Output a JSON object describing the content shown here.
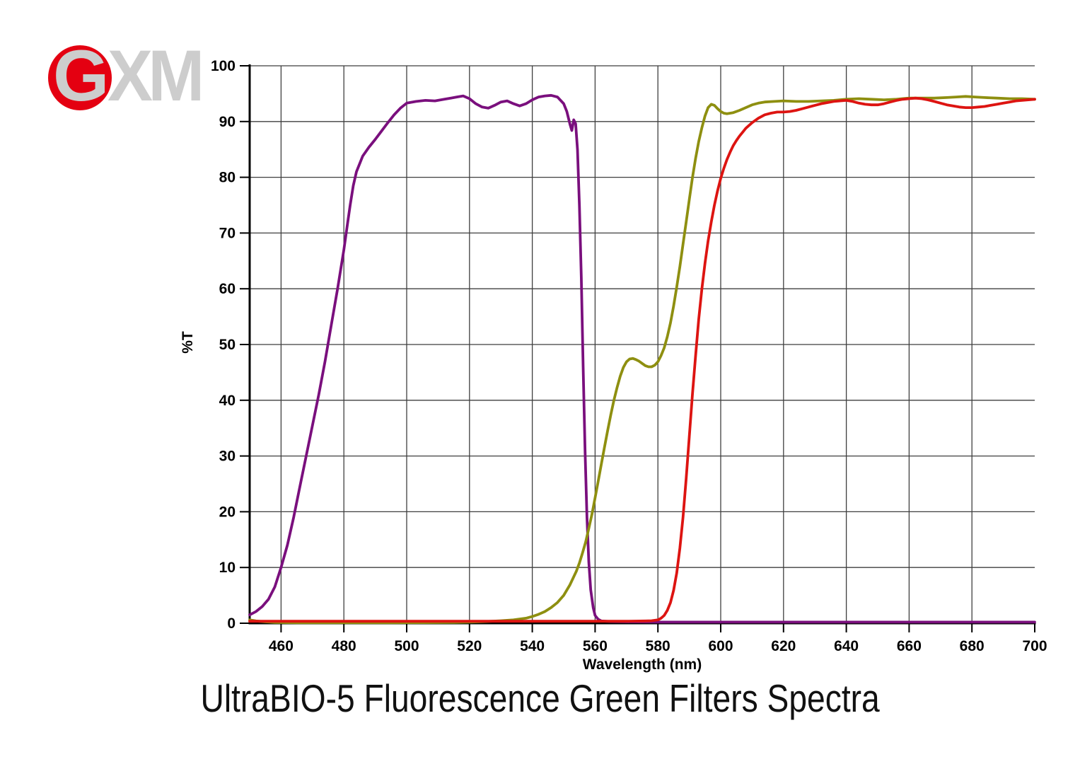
{
  "logo": {
    "g": "G",
    "xm": "XM",
    "circle_color": "#e40011",
    "letter_color": "#cdcdcd"
  },
  "title": "UltraBIO-5 Fluorescence Green Filters Spectra",
  "chart_data": {
    "type": "line",
    "title": "UltraBIO-5 Fluorescence Green Filters Spectra",
    "xlabel": "Wavelength (nm)",
    "ylabel": "%T",
    "xlim": [
      450,
      700
    ],
    "ylim": [
      0,
      100
    ],
    "x_ticks": [
      460,
      480,
      500,
      520,
      540,
      560,
      580,
      600,
      620,
      640,
      660,
      680,
      700
    ],
    "y_ticks": [
      0,
      10,
      20,
      30,
      40,
      50,
      60,
      70,
      80,
      90,
      100
    ],
    "grid": true,
    "legend_position": "none",
    "grid_color": "#3f3f3f",
    "axis_color": "#000000",
    "series": [
      {
        "name": "purple-curve",
        "color": "#7a0f7d",
        "points": [
          [
            450,
            1.5
          ],
          [
            452,
            2.1
          ],
          [
            454,
            3.0
          ],
          [
            456,
            4.3
          ],
          [
            458,
            6.5
          ],
          [
            460,
            10
          ],
          [
            462,
            14
          ],
          [
            464,
            19
          ],
          [
            466,
            24.5
          ],
          [
            468,
            30
          ],
          [
            470,
            35.5
          ],
          [
            472,
            41
          ],
          [
            474,
            47
          ],
          [
            476,
            53.5
          ],
          [
            478,
            60
          ],
          [
            480,
            67
          ],
          [
            481,
            71
          ],
          [
            482,
            75
          ],
          [
            483,
            78.5
          ],
          [
            484,
            81
          ],
          [
            486,
            83.8
          ],
          [
            488,
            85.4
          ],
          [
            490,
            86.8
          ],
          [
            492,
            88.3
          ],
          [
            494,
            89.8
          ],
          [
            496,
            91.2
          ],
          [
            498,
            92.4
          ],
          [
            500,
            93.3
          ],
          [
            503,
            93.6
          ],
          [
            506,
            93.8
          ],
          [
            509,
            93.7
          ],
          [
            512,
            94.0
          ],
          [
            514,
            94.2
          ],
          [
            516,
            94.4
          ],
          [
            518,
            94.6
          ],
          [
            520,
            94.1
          ],
          [
            522,
            93.2
          ],
          [
            524,
            92.6
          ],
          [
            526,
            92.4
          ],
          [
            528,
            92.9
          ],
          [
            530,
            93.5
          ],
          [
            532,
            93.7
          ],
          [
            534,
            93.2
          ],
          [
            536,
            92.8
          ],
          [
            538,
            93.2
          ],
          [
            540,
            93.9
          ],
          [
            542,
            94.4
          ],
          [
            544,
            94.6
          ],
          [
            546,
            94.7
          ],
          [
            548,
            94.4
          ],
          [
            550,
            93.2
          ],
          [
            551,
            91.8
          ],
          [
            552,
            89.5
          ],
          [
            552.6,
            88.4
          ],
          [
            553.2,
            90.3
          ],
          [
            553.8,
            89.6
          ],
          [
            554.4,
            85
          ],
          [
            555,
            75
          ],
          [
            555.6,
            62
          ],
          [
            556.2,
            46
          ],
          [
            556.8,
            31
          ],
          [
            557.4,
            19
          ],
          [
            558,
            11
          ],
          [
            558.6,
            6
          ],
          [
            559.4,
            2.8
          ],
          [
            560,
            1.4
          ],
          [
            561,
            0.7
          ],
          [
            562,
            0.4
          ],
          [
            565,
            0.3
          ],
          [
            570,
            0.25
          ],
          [
            580,
            0.2
          ],
          [
            600,
            0.2
          ],
          [
            640,
            0.2
          ],
          [
            700,
            0.2
          ]
        ]
      },
      {
        "name": "olive-curve",
        "color": "#8e8f10",
        "points": [
          [
            450,
            0.6
          ],
          [
            452,
            0.4
          ],
          [
            455,
            0.25
          ],
          [
            458,
            0.15
          ],
          [
            465,
            0.1
          ],
          [
            480,
            0.1
          ],
          [
            495,
            0.1
          ],
          [
            505,
            0.12
          ],
          [
            515,
            0.15
          ],
          [
            520,
            0.2
          ],
          [
            525,
            0.3
          ],
          [
            530,
            0.45
          ],
          [
            534,
            0.6
          ],
          [
            538,
            0.9
          ],
          [
            540,
            1.2
          ],
          [
            542,
            1.6
          ],
          [
            544,
            2.1
          ],
          [
            546,
            2.8
          ],
          [
            548,
            3.7
          ],
          [
            550,
            5.0
          ],
          [
            552,
            6.9
          ],
          [
            554,
            9.3
          ],
          [
            555,
            10.8
          ],
          [
            556,
            12.6
          ],
          [
            557,
            14.6
          ],
          [
            558,
            17
          ],
          [
            559,
            19.6
          ],
          [
            560,
            22.5
          ],
          [
            561,
            25.5
          ],
          [
            562,
            28.6
          ],
          [
            563,
            31.6
          ],
          [
            564,
            34.6
          ],
          [
            565,
            37.4
          ],
          [
            566,
            40
          ],
          [
            567,
            42.3
          ],
          [
            568,
            44.3
          ],
          [
            569,
            45.9
          ],
          [
            570,
            46.9
          ],
          [
            571,
            47.4
          ],
          [
            572,
            47.5
          ],
          [
            573,
            47.3
          ],
          [
            574,
            47
          ],
          [
            575,
            46.6
          ],
          [
            576,
            46.2
          ],
          [
            577,
            46
          ],
          [
            578,
            46
          ],
          [
            579,
            46.3
          ],
          [
            580,
            46.9
          ],
          [
            581,
            48
          ],
          [
            582,
            49.4
          ],
          [
            583,
            51.4
          ],
          [
            584,
            53.9
          ],
          [
            585,
            56.9
          ],
          [
            586,
            60.3
          ],
          [
            587,
            64
          ],
          [
            588,
            68
          ],
          [
            589,
            72
          ],
          [
            590,
            76
          ],
          [
            591,
            79.9
          ],
          [
            592,
            83.4
          ],
          [
            593,
            86.4
          ],
          [
            594,
            88.9
          ],
          [
            595,
            91
          ],
          [
            596,
            92.5
          ],
          [
            597,
            93.1
          ],
          [
            598,
            92.9
          ],
          [
            599,
            92.3
          ],
          [
            600,
            91.8
          ],
          [
            601,
            91.5
          ],
          [
            602,
            91.4
          ],
          [
            604,
            91.6
          ],
          [
            606,
            92
          ],
          [
            608,
            92.5
          ],
          [
            610,
            93
          ],
          [
            612,
            93.3
          ],
          [
            614,
            93.5
          ],
          [
            617,
            93.6
          ],
          [
            620,
            93.7
          ],
          [
            624,
            93.6
          ],
          [
            628,
            93.6
          ],
          [
            632,
            93.7
          ],
          [
            636,
            93.8
          ],
          [
            640,
            94
          ],
          [
            644,
            94.1
          ],
          [
            648,
            94
          ],
          [
            652,
            93.9
          ],
          [
            656,
            94
          ],
          [
            660,
            94.2
          ],
          [
            664,
            94.2
          ],
          [
            668,
            94.2
          ],
          [
            672,
            94.3
          ],
          [
            675,
            94.4
          ],
          [
            678,
            94.5
          ],
          [
            681,
            94.4
          ],
          [
            684,
            94.3
          ],
          [
            688,
            94.2
          ],
          [
            692,
            94.1
          ],
          [
            696,
            94.1
          ],
          [
            700,
            94
          ]
        ]
      },
      {
        "name": "red-curve",
        "color": "#dd1411",
        "points": [
          [
            450,
            0.35
          ],
          [
            470,
            0.35
          ],
          [
            500,
            0.35
          ],
          [
            530,
            0.35
          ],
          [
            560,
            0.35
          ],
          [
            570,
            0.35
          ],
          [
            576,
            0.4
          ],
          [
            578,
            0.45
          ],
          [
            580,
            0.6
          ],
          [
            581,
            0.9
          ],
          [
            582,
            1.4
          ],
          [
            583,
            2.3
          ],
          [
            584,
            3.7
          ],
          [
            585,
            5.9
          ],
          [
            586,
            9
          ],
          [
            587,
            13.5
          ],
          [
            588,
            19
          ],
          [
            589,
            26
          ],
          [
            590,
            33.5
          ],
          [
            591,
            41
          ],
          [
            592,
            48
          ],
          [
            593,
            54.5
          ],
          [
            594,
            60
          ],
          [
            595,
            64.6
          ],
          [
            596,
            68.6
          ],
          [
            597,
            72
          ],
          [
            598,
            75
          ],
          [
            599,
            77.6
          ],
          [
            600,
            79.8
          ],
          [
            601,
            81.6
          ],
          [
            602,
            83.2
          ],
          [
            603,
            84.5
          ],
          [
            604,
            85.7
          ],
          [
            605,
            86.6
          ],
          [
            606,
            87.4
          ],
          [
            607,
            88.1
          ],
          [
            608,
            88.8
          ],
          [
            609,
            89.3
          ],
          [
            610,
            89.8
          ],
          [
            612,
            90.6
          ],
          [
            614,
            91.2
          ],
          [
            616,
            91.5
          ],
          [
            618,
            91.7
          ],
          [
            620,
            91.7
          ],
          [
            622,
            91.8
          ],
          [
            624,
            92
          ],
          [
            626,
            92.3
          ],
          [
            628,
            92.6
          ],
          [
            630,
            92.9
          ],
          [
            632,
            93.2
          ],
          [
            634,
            93.4
          ],
          [
            636,
            93.6
          ],
          [
            638,
            93.7
          ],
          [
            640,
            93.8
          ],
          [
            642,
            93.6
          ],
          [
            644,
            93.3
          ],
          [
            646,
            93.1
          ],
          [
            648,
            93
          ],
          [
            650,
            93
          ],
          [
            652,
            93.2
          ],
          [
            654,
            93.5
          ],
          [
            656,
            93.8
          ],
          [
            658,
            94
          ],
          [
            660,
            94.1
          ],
          [
            662,
            94.2
          ],
          [
            664,
            94.1
          ],
          [
            666,
            93.9
          ],
          [
            668,
            93.6
          ],
          [
            670,
            93.3
          ],
          [
            672,
            93
          ],
          [
            674,
            92.8
          ],
          [
            676,
            92.6
          ],
          [
            678,
            92.5
          ],
          [
            680,
            92.5
          ],
          [
            682,
            92.6
          ],
          [
            684,
            92.7
          ],
          [
            686,
            92.9
          ],
          [
            688,
            93.1
          ],
          [
            690,
            93.3
          ],
          [
            692,
            93.5
          ],
          [
            694,
            93.7
          ],
          [
            696,
            93.8
          ],
          [
            698,
            93.9
          ],
          [
            700,
            94
          ]
        ]
      }
    ]
  }
}
